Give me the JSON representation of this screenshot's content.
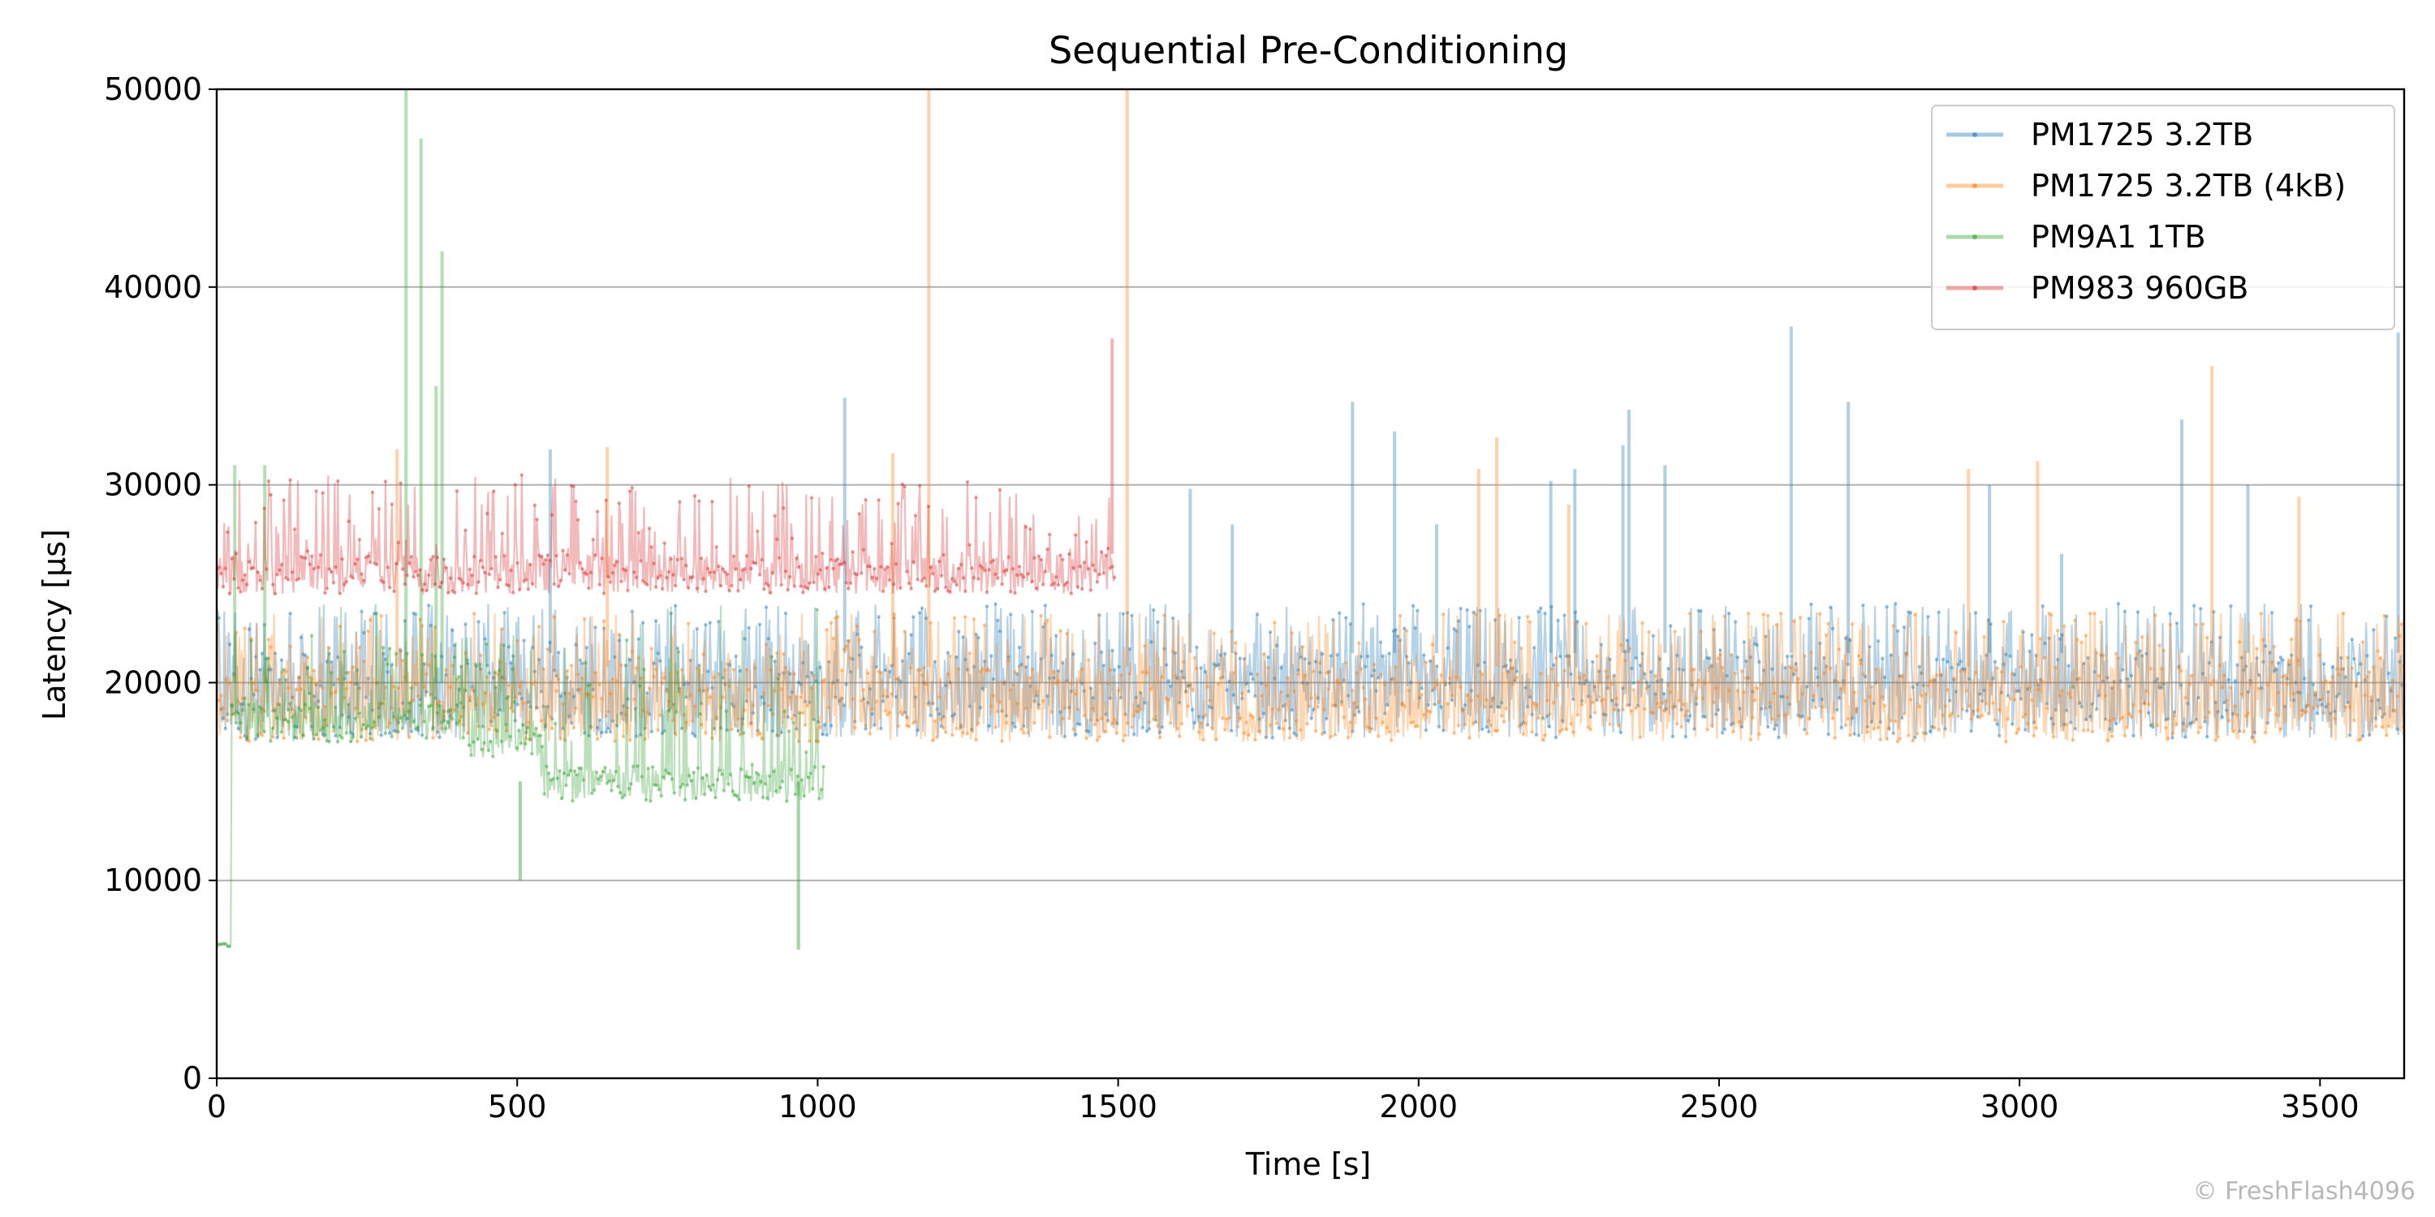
{
  "watermark": "© FreshFlash4096",
  "chart_data": {
    "type": "line",
    "title": "Sequential Pre-Conditioning",
    "xlabel": "Time [s]",
    "ylabel": "Latency [µs]",
    "xlim": [
      0,
      3640
    ],
    "ylim": [
      0,
      50000
    ],
    "xticks": [
      0,
      500,
      1000,
      1500,
      2000,
      2500,
      3000,
      3500
    ],
    "yticks": [
      0,
      10000,
      20000,
      30000,
      40000,
      50000
    ],
    "grid": "horizontal",
    "legend_position": "top-right",
    "series": [
      {
        "name": "PM1725 3.2TB",
        "color": "#1f77b4",
        "x_range": [
          0,
          3640
        ],
        "band": {
          "base": 17200,
          "upper": 21500,
          "spread_top": 24000
        },
        "typical_peak": 23500,
        "spikes": [
          {
            "x": 555,
            "y": 31800
          },
          {
            "x": 1045,
            "y": 34400
          },
          {
            "x": 1620,
            "y": 29800
          },
          {
            "x": 1690,
            "y": 28000
          },
          {
            "x": 1890,
            "y": 34200
          },
          {
            "x": 1960,
            "y": 32700
          },
          {
            "x": 2030,
            "y": 28000
          },
          {
            "x": 2220,
            "y": 30200
          },
          {
            "x": 2260,
            "y": 30800
          },
          {
            "x": 2340,
            "y": 32000
          },
          {
            "x": 2350,
            "y": 33800
          },
          {
            "x": 2410,
            "y": 31000
          },
          {
            "x": 2620,
            "y": 38000
          },
          {
            "x": 2715,
            "y": 34200
          },
          {
            "x": 2950,
            "y": 30000
          },
          {
            "x": 3070,
            "y": 26500
          },
          {
            "x": 3270,
            "y": 33300
          },
          {
            "x": 3380,
            "y": 30000
          },
          {
            "x": 3630,
            "y": 37700
          }
        ]
      },
      {
        "name": "PM1725 3.2TB (4kB)",
        "color": "#ff7f0e",
        "x_range": [
          0,
          3640
        ],
        "band": {
          "base": 17000,
          "upper": 20800,
          "spread_top": 23500
        },
        "typical_peak": 23500,
        "spikes": [
          {
            "x": 300,
            "y": 31800
          },
          {
            "x": 650,
            "y": 31900
          },
          {
            "x": 1125,
            "y": 31600
          },
          {
            "x": 1185,
            "y": 50000
          },
          {
            "x": 1515,
            "y": 50000
          },
          {
            "x": 2100,
            "y": 30800
          },
          {
            "x": 2130,
            "y": 32400
          },
          {
            "x": 2250,
            "y": 29000
          },
          {
            "x": 2915,
            "y": 30800
          },
          {
            "x": 3030,
            "y": 31200
          },
          {
            "x": 3320,
            "y": 36000
          },
          {
            "x": 3465,
            "y": 29400
          }
        ]
      },
      {
        "name": "PM9A1 1TB",
        "color": "#2ca02c",
        "x_range": [
          0,
          1010
        ],
        "segments": [
          {
            "x": [
              0,
              25
            ],
            "base": 6600,
            "upper": 6800
          },
          {
            "x": [
              25,
              420
            ],
            "base": 17000,
            "upper": 19000,
            "spread_top": 22500
          },
          {
            "x": [
              420,
              540
            ],
            "base": 16200,
            "upper": 18000,
            "spread_top": 22500
          },
          {
            "x": [
              540,
              1010
            ],
            "base": 14000,
            "upper": 15800,
            "spread_top": 22500
          }
        ],
        "typical_peak": 24500,
        "spikes": [
          {
            "x": 315,
            "y": 50000
          },
          {
            "x": 340,
            "y": 47500
          },
          {
            "x": 365,
            "y": 35000
          },
          {
            "x": 375,
            "y": 41800
          },
          {
            "x": 30,
            "y": 31000
          },
          {
            "x": 80,
            "y": 31000
          }
        ],
        "dips": [
          {
            "x": 505,
            "y": 10000
          },
          {
            "x": 968,
            "y": 6500
          }
        ]
      },
      {
        "name": "PM983 960GB",
        "color": "#d62728",
        "x_range": [
          0,
          1495
        ],
        "band": {
          "base": 24500,
          "upper": 26500,
          "spread_top": 30500
        },
        "typical_peak": 29500,
        "spikes": [
          {
            "x": 1490,
            "y": 37400
          }
        ]
      }
    ]
  }
}
